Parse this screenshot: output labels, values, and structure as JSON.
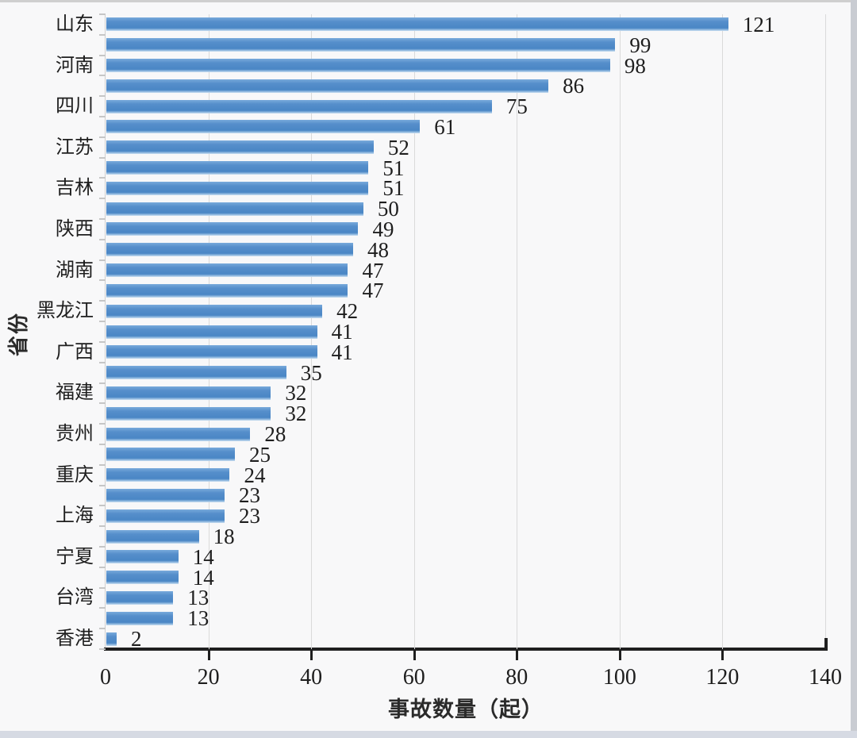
{
  "chart_data": {
    "type": "bar",
    "orientation": "horizontal",
    "title": "",
    "xlabel": "事故数量（起）",
    "ylabel": "省份",
    "xlim": [
      0,
      140
    ],
    "xticks": [
      0,
      20,
      40,
      60,
      80,
      100,
      120,
      140
    ],
    "grid": true,
    "legend": false,
    "value_labels_shown": true,
    "categories": [
      "山东",
      "",
      "河南",
      "",
      "四川",
      "",
      "江苏",
      "",
      "吉林",
      "",
      "陕西",
      "",
      "湖南",
      "",
      "黑龙江",
      "",
      "广西",
      "",
      "福建",
      "",
      "贵州",
      "",
      "重庆",
      "",
      "上海",
      "",
      "宁夏",
      "",
      "台湾",
      "",
      "香港"
    ],
    "values": [
      121,
      99,
      98,
      86,
      75,
      61,
      52,
      51,
      51,
      50,
      49,
      48,
      47,
      47,
      42,
      41,
      41,
      35,
      32,
      32,
      28,
      25,
      24,
      23,
      23,
      18,
      14,
      14,
      13,
      13,
      2
    ],
    "colors": {
      "bar": "#4E8BC8",
      "bar_gradient_top": "#78AADB",
      "bar_gradient_bottom": "#CADEF0",
      "gridline": "#DADADA",
      "axis_line": "#1F1F1F",
      "text": "#1E1E1E"
    }
  }
}
